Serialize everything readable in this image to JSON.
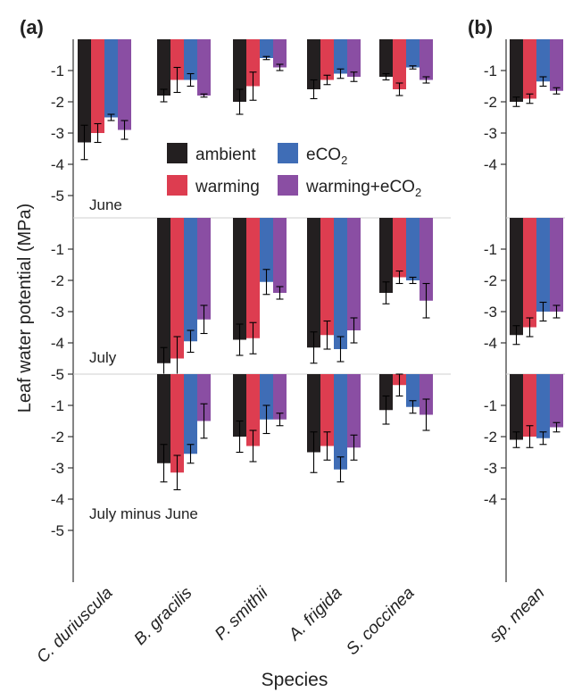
{
  "figure": {
    "ylabel": "Leaf water potential (MPa)",
    "xlabel": "Species"
  },
  "legend": [
    {
      "label": "ambient",
      "sub": "",
      "color": "#231f20"
    },
    {
      "label": "eCO",
      "sub": "2",
      "color": "#3f6db6"
    },
    {
      "label": "warming",
      "sub": "",
      "color": "#dd3d50"
    },
    {
      "label": "warming+eCO",
      "sub": "2",
      "color": "#8a4ea3"
    }
  ],
  "chart_data": [
    {
      "type": "bar",
      "panel_label": "(a)",
      "categories": [
        "C. duriuscula",
        "B. gracilis",
        "P. smithii",
        "A. frigida",
        "S. coccinea"
      ],
      "series_labels": [
        "ambient",
        "warming",
        "eCO2",
        "warming+eCO2"
      ],
      "yticks": [
        -1,
        -2,
        -3,
        -4,
        -5
      ],
      "ylim": [
        0,
        -5.6
      ],
      "rows": [
        {
          "label": "June",
          "values": [
            [
              -3.3,
              -3.0,
              -2.5,
              -2.9
            ],
            [
              -1.8,
              -1.3,
              -1.3,
              -1.8
            ],
            [
              -2.0,
              -1.5,
              -0.6,
              -0.9
            ],
            [
              -1.6,
              -1.3,
              -1.1,
              -1.2
            ],
            [
              -1.2,
              -1.6,
              -0.9,
              -1.3
            ]
          ],
          "errors": [
            [
              0.55,
              0.3,
              0.1,
              0.3
            ],
            [
              0.2,
              0.4,
              0.2,
              0.05
            ],
            [
              0.4,
              0.45,
              0.05,
              0.1
            ],
            [
              0.3,
              0.15,
              0.15,
              0.15
            ],
            [
              0.1,
              0.2,
              0.05,
              0.1
            ]
          ]
        },
        {
          "label": "July",
          "values": [
            [
              null,
              null,
              null,
              null
            ],
            [
              -4.65,
              -4.5,
              -3.95,
              -3.25
            ],
            [
              -3.9,
              -3.85,
              -2.05,
              -2.4
            ],
            [
              -4.15,
              -3.75,
              -4.2,
              -3.6
            ],
            [
              -2.4,
              -1.9,
              -2.0,
              -2.65
            ]
          ],
          "errors": [
            [
              null,
              null,
              null,
              null
            ],
            [
              0.5,
              0.7,
              0.35,
              0.45
            ],
            [
              0.5,
              0.5,
              0.4,
              0.2
            ],
            [
              0.5,
              0.45,
              0.4,
              0.4
            ],
            [
              0.35,
              0.2,
              0.1,
              0.55
            ]
          ]
        },
        {
          "label": "July minus June",
          "values": [
            [
              null,
              null,
              null,
              null
            ],
            [
              -2.85,
              -3.15,
              -2.55,
              -1.5
            ],
            [
              -2.0,
              -2.3,
              -1.45,
              -1.45
            ],
            [
              -2.5,
              -2.3,
              -3.05,
              -2.35
            ],
            [
              -1.15,
              -0.35,
              -1.05,
              -1.3
            ]
          ],
          "errors": [
            [
              null,
              null,
              null,
              null
            ],
            [
              0.6,
              0.55,
              0.3,
              0.55
            ],
            [
              0.5,
              0.5,
              0.45,
              0.2
            ],
            [
              0.65,
              0.45,
              0.4,
              0.4
            ],
            [
              0.45,
              0.35,
              0.2,
              0.5
            ]
          ]
        }
      ]
    },
    {
      "type": "bar",
      "panel_label": "(b)",
      "categories": [
        "sp. mean"
      ],
      "series_labels": [
        "ambient",
        "warming",
        "eCO2",
        "warming+eCO2"
      ],
      "yticks": [
        -1,
        -2,
        -3,
        -4
      ],
      "ylim": [
        0,
        -4.6
      ],
      "rows": [
        {
          "label": "",
          "values": [
            [
              -2.0,
              -1.9,
              -1.35,
              -1.65
            ]
          ],
          "errors": [
            [
              0.15,
              0.15,
              0.15,
              0.1
            ]
          ]
        },
        {
          "label": "",
          "values": [
            [
              -3.75,
              -3.5,
              -3.0,
              -3.0
            ]
          ],
          "errors": [
            [
              0.3,
              0.3,
              0.3,
              0.2
            ]
          ]
        },
        {
          "label": "",
          "values": [
            [
              -2.1,
              -2.0,
              -2.05,
              -1.7
            ]
          ],
          "errors": [
            [
              0.25,
              0.35,
              0.2,
              0.15
            ]
          ]
        }
      ]
    }
  ]
}
